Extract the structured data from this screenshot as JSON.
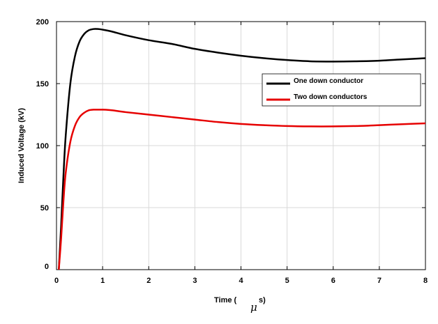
{
  "chart_data": {
    "type": "line",
    "title": "",
    "xlabel": "Time (",
    "xlabel_symbol": "μ",
    "xlabel_suffix": "s)",
    "ylabel": "Induced Voltage (kV)",
    "xlim": [
      0,
      8
    ],
    "ylim": [
      0,
      200
    ],
    "xticks": [
      0,
      1,
      2,
      3,
      4,
      5,
      6,
      7,
      8
    ],
    "yticks": [
      0,
      50,
      100,
      150,
      200
    ],
    "grid": true,
    "legend_position": "right-upper",
    "series": [
      {
        "name": "One down conductor",
        "color": "#000000",
        "x": [
          0.05,
          0.1,
          0.15,
          0.2,
          0.3,
          0.4,
          0.5,
          0.6,
          0.7,
          0.8,
          0.9,
          1.0,
          1.2,
          1.5,
          2.0,
          2.5,
          3.0,
          3.5,
          4.0,
          4.5,
          5.0,
          5.5,
          6.0,
          6.5,
          7.0,
          7.5,
          8.0
        ],
        "y": [
          0,
          35,
          75,
          108,
          150,
          172,
          184,
          190,
          193,
          194,
          194,
          193.5,
          192,
          189,
          185,
          182,
          178,
          175,
          172.5,
          170.5,
          169,
          168,
          167.8,
          168,
          168.5,
          169.5,
          170.5
        ]
      },
      {
        "name": "Two down conductors",
        "color": "#e60000",
        "x": [
          0.05,
          0.1,
          0.15,
          0.2,
          0.3,
          0.4,
          0.5,
          0.6,
          0.7,
          0.8,
          0.9,
          1.0,
          1.2,
          1.5,
          2.0,
          2.5,
          3.0,
          3.5,
          4.0,
          4.5,
          5.0,
          5.5,
          6.0,
          6.5,
          7.0,
          7.5,
          8.0
        ],
        "y": [
          0,
          25,
          55,
          78,
          103,
          116,
          123,
          126.5,
          128.5,
          129,
          129,
          129,
          128.5,
          127,
          125,
          123,
          121,
          119,
          117.5,
          116.5,
          115.8,
          115.5,
          115.5,
          115.8,
          116.5,
          117.3,
          118
        ]
      }
    ]
  }
}
